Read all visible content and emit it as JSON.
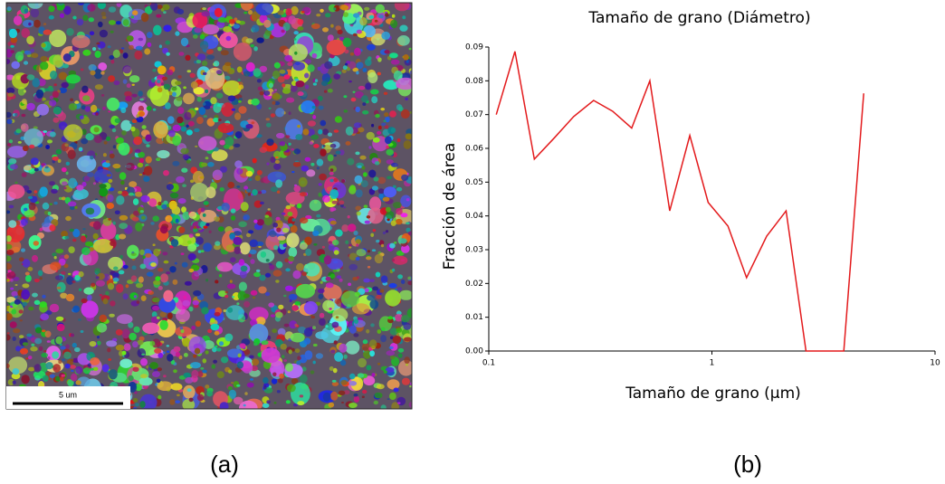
{
  "chart_data": {
    "type": "line",
    "title": "Tamaño de grano (Diámetro)",
    "x_label": "Tamaño de grano (µm)",
    "y_label": "Fracción de área",
    "x": [
      0.108,
      0.131,
      0.16,
      0.196,
      0.24,
      0.295,
      0.359,
      0.437,
      0.527,
      0.647,
      0.796,
      0.962,
      1.18,
      1.43,
      1.76,
      2.15,
      2.64,
      3.9,
      4.79
    ],
    "series": [
      {
        "name": "Fracción de área",
        "color": "#e31a1c",
        "values": [
          0.07,
          0.0887,
          0.0568,
          0.063,
          0.0694,
          0.0742,
          0.071,
          0.066,
          0.08,
          0.0415,
          0.0638,
          0.044,
          0.037,
          0.0217,
          0.034,
          0.0415,
          0,
          0,
          0.0763
        ]
      }
    ],
    "xlim": [
      0.1,
      10
    ],
    "xticks": [
      0.1,
      1,
      10
    ],
    "x_log": true,
    "ylim": [
      0,
      0.09
    ],
    "yticks": [
      {
        "value": 0,
        "label": "0.00"
      },
      0.01,
      0.02,
      0.03,
      0.04,
      0.05,
      0.06,
      0.07,
      0.08,
      0.09
    ],
    "grid": false
  },
  "panel_a": {
    "scale_bar": "5 um",
    "label": "(a)"
  },
  "panel_b": {
    "label": "(b)"
  }
}
